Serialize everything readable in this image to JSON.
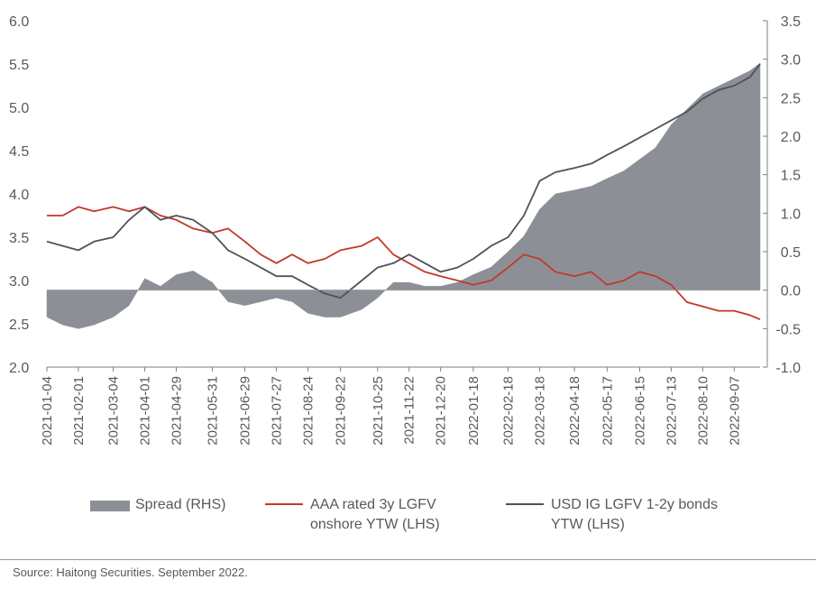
{
  "chart_data": {
    "type": "line",
    "source": "Source: Haitong Securities. September 2022.",
    "x": [
      "2021-01-04",
      "2021-01-18",
      "2021-02-01",
      "2021-02-15",
      "2021-03-04",
      "2021-03-18",
      "2021-04-01",
      "2021-04-15",
      "2021-04-29",
      "2021-05-14",
      "2021-05-31",
      "2021-06-14",
      "2021-06-29",
      "2021-07-13",
      "2021-07-27",
      "2021-08-10",
      "2021-08-24",
      "2021-09-08",
      "2021-09-22",
      "2021-10-11",
      "2021-10-25",
      "2021-11-08",
      "2021-11-22",
      "2021-12-06",
      "2021-12-20",
      "2022-01-04",
      "2022-01-18",
      "2022-02-03",
      "2022-02-18",
      "2022-03-04",
      "2022-03-18",
      "2022-04-01",
      "2022-04-18",
      "2022-05-03",
      "2022-05-17",
      "2022-06-01",
      "2022-06-15",
      "2022-06-29",
      "2022-07-13",
      "2022-07-27",
      "2022-08-10",
      "2022-08-24",
      "2022-09-07",
      "2022-09-21",
      "2022-09-30"
    ],
    "x_tick_labels": [
      "2021-01-04",
      "2021-02-01",
      "2021-03-04",
      "2021-04-01",
      "2021-04-29",
      "2021-05-31",
      "2021-06-29",
      "2021-07-27",
      "2021-08-24",
      "2021-09-22",
      "2021-10-25",
      "2021-11-22",
      "2021-12-20",
      "2022-01-18",
      "2022-02-18",
      "2022-03-18",
      "2022-04-18",
      "2022-05-17",
      "2022-06-15",
      "2022-07-13",
      "2022-08-10",
      "2022-09-07"
    ],
    "y_left": {
      "ylim": [
        2.0,
        6.0
      ],
      "ticks": [
        "2.0",
        "2.5",
        "3.0",
        "3.5",
        "4.0",
        "4.5",
        "5.0",
        "5.5",
        "6.0"
      ]
    },
    "y_right": {
      "ylim": [
        -1.0,
        3.5
      ],
      "ticks": [
        "-1.0",
        "-0.5",
        "0.0",
        "0.5",
        "1.0",
        "1.5",
        "2.0",
        "2.5",
        "3.0",
        "3.5"
      ]
    },
    "series": [
      {
        "name": "Spread (RHS)",
        "kind": "area",
        "axis": "right",
        "color": "#8c9096",
        "values": [
          -0.35,
          -0.45,
          -0.5,
          -0.45,
          -0.35,
          -0.2,
          0.15,
          0.05,
          0.2,
          0.25,
          0.1,
          -0.15,
          -0.2,
          -0.15,
          -0.1,
          -0.15,
          -0.3,
          -0.35,
          -0.35,
          -0.25,
          -0.1,
          0.1,
          0.1,
          0.05,
          0.05,
          0.1,
          0.2,
          0.3,
          0.5,
          0.7,
          1.05,
          1.25,
          1.3,
          1.35,
          1.45,
          1.55,
          1.7,
          1.85,
          2.15,
          2.35,
          2.55,
          2.65,
          2.75,
          2.85,
          2.95
        ]
      },
      {
        "name": "AAA rated 3y LGFV onshore YTW (LHS)",
        "kind": "line",
        "axis": "left",
        "color": "#c0392b",
        "values": [
          3.75,
          3.75,
          3.85,
          3.8,
          3.85,
          3.8,
          3.85,
          3.75,
          3.7,
          3.6,
          3.55,
          3.6,
          3.45,
          3.3,
          3.2,
          3.3,
          3.2,
          3.25,
          3.35,
          3.4,
          3.5,
          3.3,
          3.2,
          3.1,
          3.05,
          3.0,
          2.95,
          3.0,
          3.15,
          3.3,
          3.25,
          3.1,
          3.05,
          3.1,
          2.95,
          3.0,
          3.1,
          3.05,
          2.95,
          2.75,
          2.7,
          2.65,
          2.65,
          2.6,
          2.55
        ]
      },
      {
        "name": "USD IG LGFV 1-2y bonds YTW (LHS)",
        "kind": "line",
        "axis": "left",
        "color": "#4d5359",
        "values": [
          3.45,
          3.4,
          3.35,
          3.45,
          3.5,
          3.7,
          3.85,
          3.7,
          3.75,
          3.7,
          3.55,
          3.35,
          3.25,
          3.15,
          3.05,
          3.05,
          2.95,
          2.85,
          2.8,
          3.0,
          3.15,
          3.2,
          3.3,
          3.2,
          3.1,
          3.15,
          3.25,
          3.4,
          3.5,
          3.75,
          4.15,
          4.25,
          4.3,
          4.35,
          4.45,
          4.55,
          4.65,
          4.75,
          4.85,
          4.95,
          5.1,
          5.2,
          5.25,
          5.35,
          5.5
        ]
      }
    ]
  }
}
